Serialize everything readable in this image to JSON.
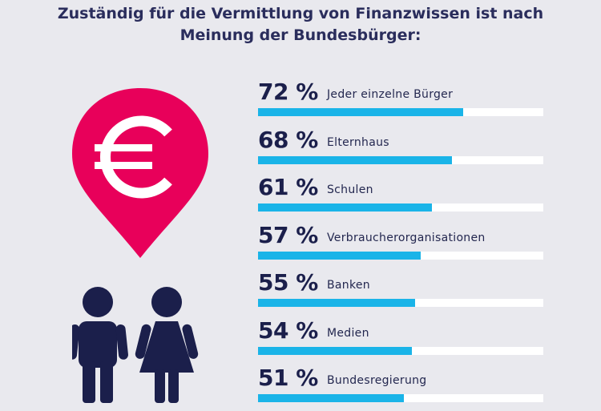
{
  "title": {
    "line1": "Zuständig für die Vermittlung von Finanzwissen ist nach",
    "line2": "Meinung der Bundesbürger:"
  },
  "colors": {
    "background": "#e9e9ee",
    "bar_fill": "#1ab4e8",
    "bar_track": "#ffffff",
    "pin": "#e8005a",
    "people": "#1b1f4b",
    "text": "#1d2150"
  },
  "icons": [
    "euro-pin-icon",
    "man-icon",
    "woman-icon"
  ],
  "chart_data": {
    "type": "bar",
    "orientation": "horizontal",
    "xlim": [
      0,
      100
    ],
    "categories": [
      "Jeder einzelne Bürger",
      "Elternhaus",
      "Schulen",
      "Verbraucherorganisationen",
      "Banken",
      "Medien",
      "Bundesregierung"
    ],
    "values": [
      72,
      68,
      61,
      57,
      55,
      54,
      51
    ],
    "value_labels": [
      "72 %",
      "68 %",
      "61 %",
      "57 %",
      "55 %",
      "54 %",
      "51 %"
    ]
  }
}
